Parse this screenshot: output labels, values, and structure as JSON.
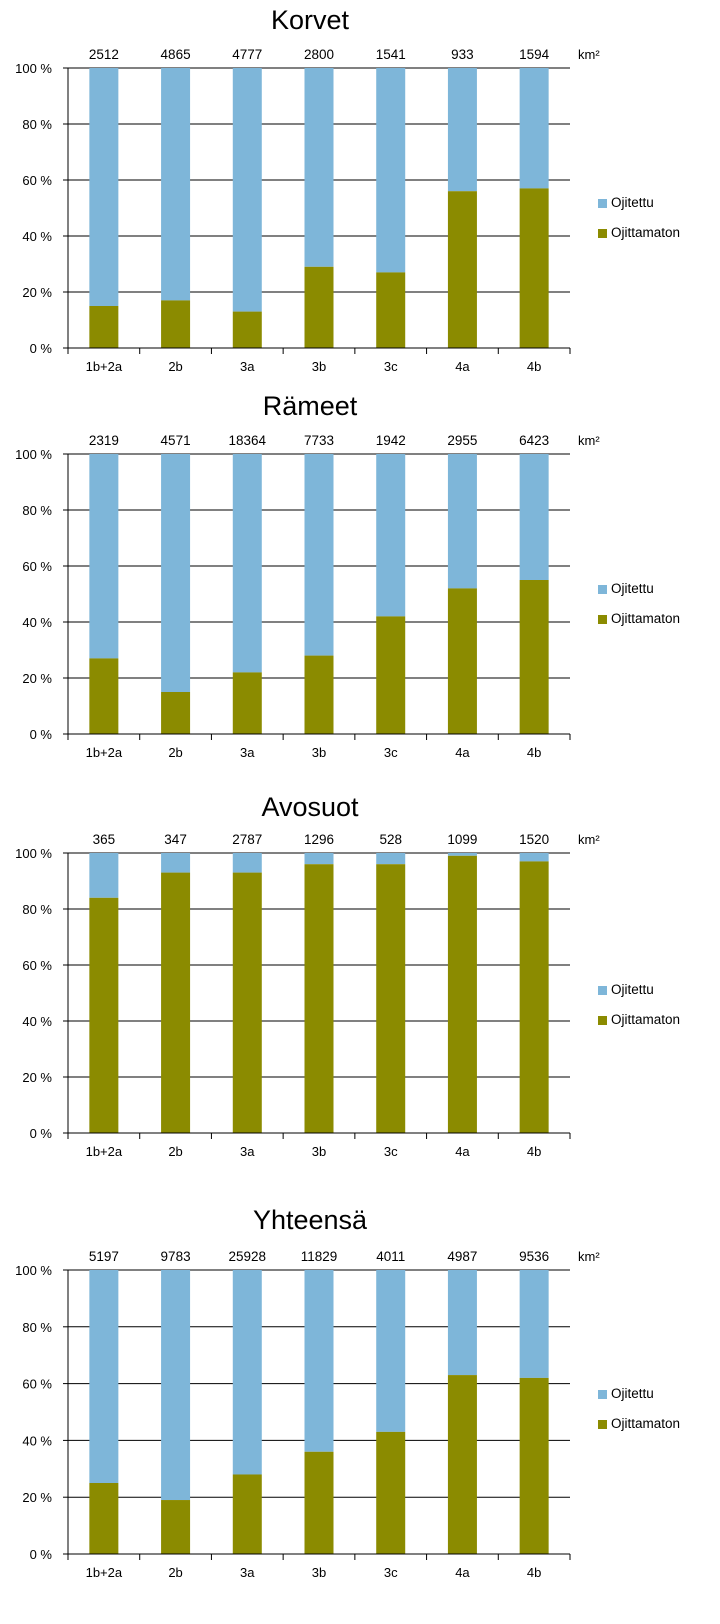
{
  "colors": {
    "ojitettu": "#7EB6D9",
    "ojittamaton": "#8B8B00",
    "gridline": "#000000"
  },
  "legend": {
    "ojitettu": "Ojitettu",
    "ojittamaton": "Ojittamaton"
  },
  "unit": "km²",
  "chart_data": [
    {
      "type": "bar",
      "stacked": "percent",
      "title": "Korvet",
      "categories": [
        "1b+2a",
        "2b",
        "3a",
        "3b",
        "3c",
        "4a",
        "4b"
      ],
      "totals": [
        "2512",
        "4865",
        "4777",
        "2800",
        "1541",
        "933",
        "1594"
      ],
      "yticks": [
        "0 %",
        "20 %",
        "40 %",
        "60 %",
        "80 %",
        "100 %"
      ],
      "ylim": [
        0,
        100
      ],
      "grid": true,
      "legend_position": "right",
      "series": [
        {
          "name": "Ojittamaton",
          "values": [
            15,
            17,
            13,
            29,
            27,
            56,
            57
          ]
        },
        {
          "name": "Ojitettu",
          "values": [
            85,
            83,
            87,
            71,
            73,
            44,
            43
          ]
        }
      ]
    },
    {
      "type": "bar",
      "stacked": "percent",
      "title": "Rämeet",
      "categories": [
        "1b+2a",
        "2b",
        "3a",
        "3b",
        "3c",
        "4a",
        "4b"
      ],
      "totals": [
        "2319",
        "4571",
        "18364",
        "7733",
        "1942",
        "2955",
        "6423"
      ],
      "yticks": [
        "0 %",
        "20 %",
        "40 %",
        "60 %",
        "80 %",
        "100 %"
      ],
      "ylim": [
        0,
        100
      ],
      "grid": true,
      "legend_position": "right",
      "series": [
        {
          "name": "Ojittamaton",
          "values": [
            27,
            15,
            22,
            28,
            42,
            52,
            55
          ]
        },
        {
          "name": "Ojitettu",
          "values": [
            73,
            85,
            78,
            72,
            58,
            48,
            45
          ]
        }
      ]
    },
    {
      "type": "bar",
      "stacked": "percent",
      "title": "Avosuot",
      "categories": [
        "1b+2a",
        "2b",
        "3a",
        "3b",
        "3c",
        "4a",
        "4b"
      ],
      "totals": [
        "365",
        "347",
        "2787",
        "1296",
        "528",
        "1099",
        "1520"
      ],
      "yticks": [
        "0 %",
        "20 %",
        "40 %",
        "60 %",
        "80 %",
        "100 %"
      ],
      "ylim": [
        0,
        100
      ],
      "grid": true,
      "legend_position": "right",
      "series": [
        {
          "name": "Ojittamaton",
          "values": [
            84,
            93,
            93,
            96,
            96,
            99,
            97
          ]
        },
        {
          "name": "Ojitettu",
          "values": [
            16,
            7,
            7,
            4,
            4,
            1,
            3
          ]
        }
      ]
    },
    {
      "type": "bar",
      "stacked": "percent",
      "title": "Yhteensä",
      "categories": [
        "1b+2a",
        "2b",
        "3a",
        "3b",
        "3c",
        "4a",
        "4b"
      ],
      "totals": [
        "5197",
        "9783",
        "25928",
        "11829",
        "4011",
        "4987",
        "9536"
      ],
      "yticks": [
        "0 %",
        "20 %",
        "40 %",
        "60 %",
        "80 %",
        "100 %"
      ],
      "ylim": [
        0,
        100
      ],
      "grid": true,
      "legend_position": "right",
      "series": [
        {
          "name": "Ojittamaton",
          "values": [
            25,
            19,
            28,
            36,
            43,
            63,
            62
          ]
        },
        {
          "name": "Ojitettu",
          "values": [
            75,
            81,
            72,
            64,
            57,
            37,
            38
          ]
        }
      ]
    }
  ]
}
